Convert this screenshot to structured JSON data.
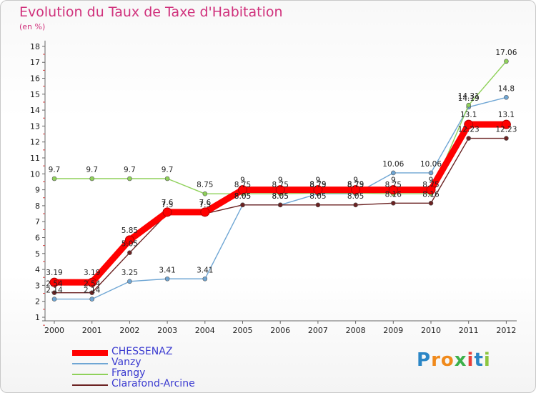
{
  "title": "Evolution du Taux de Taxe d'Habitation",
  "subtitle": "(en %)",
  "logo": {
    "letters": [
      "P",
      "r",
      "o",
      "x",
      "i",
      "t",
      "i"
    ],
    "colors": [
      "#2b86c6",
      "#f08a1c",
      "#f08a1c",
      "#3cb04a",
      "#e8403a",
      "#2b86c6",
      "#8dc63f"
    ]
  },
  "chart_data": {
    "type": "line",
    "title": "Evolution du Taux de Taxe d'Habitation",
    "ylabel": "(en %)",
    "xlabel": "",
    "x": [
      "2000",
      "2001",
      "2002",
      "2003",
      "2004",
      "2005",
      "2006",
      "2007",
      "2008",
      "2009",
      "2010",
      "2011",
      "2012"
    ],
    "ylim": [
      1,
      18
    ],
    "yticks": [
      "1",
      "2",
      "3",
      "4",
      "5",
      "6",
      "7",
      "8",
      "9",
      "10",
      "11",
      "12",
      "13",
      "14",
      "15",
      "16",
      "17",
      "18"
    ],
    "legend_position": "bottom-left",
    "grid": false,
    "series": [
      {
        "name": "CHESSENAZ",
        "color": "#ff0000",
        "values": [
          3.19,
          3.19,
          5.85,
          7.6,
          7.6,
          9,
          9,
          9,
          9,
          9,
          9,
          13.1,
          13.1
        ],
        "labels": [
          "3.19",
          "3.19",
          "5.85",
          "7.6",
          "7.6",
          "9",
          "9",
          "9",
          "9",
          "9",
          "9",
          "13.1",
          "13.1"
        ]
      },
      {
        "name": "Vanzy",
        "color": "#6fa6d4",
        "values": [
          2.14,
          2.14,
          3.25,
          3.41,
          3.41,
          8.05,
          8.05,
          8.75,
          8.75,
          10.06,
          10.06,
          14.19,
          14.8
        ],
        "labels": [
          "2.14",
          "2.14",
          "3.25",
          "3.41",
          "3.41",
          "8.05",
          "8.05",
          "8.75",
          "8.75",
          "10.06",
          "10.06",
          "14.19",
          "14.8"
        ]
      },
      {
        "name": "Frangy",
        "color": "#8fd15a",
        "values": [
          9.7,
          9.7,
          9.7,
          9.7,
          8.75,
          8.75,
          8.75,
          8.79,
          8.79,
          8.75,
          8.75,
          14.31,
          17.06
        ],
        "labels": [
          "9.7",
          "9.7",
          "9.7",
          "9.7",
          "8.75",
          "8.75",
          "8.75",
          "8.79",
          "8.79",
          "8.75",
          "8.75",
          "14.31",
          "17.06"
        ]
      },
      {
        "name": "Clarafond-Arcine",
        "color": "#6b2222",
        "values": [
          2.54,
          2.54,
          5.05,
          7.5,
          7.5,
          8.05,
          8.05,
          8.05,
          8.05,
          8.16,
          8.16,
          12.23,
          12.23
        ],
        "labels": [
          "2.54",
          "2.54",
          "5.05",
          "7.5",
          "7.5",
          "8.05",
          "8.05",
          "8.05",
          "8.05",
          "8.16",
          "8.16",
          "12.23",
          "12.23"
        ]
      }
    ]
  }
}
